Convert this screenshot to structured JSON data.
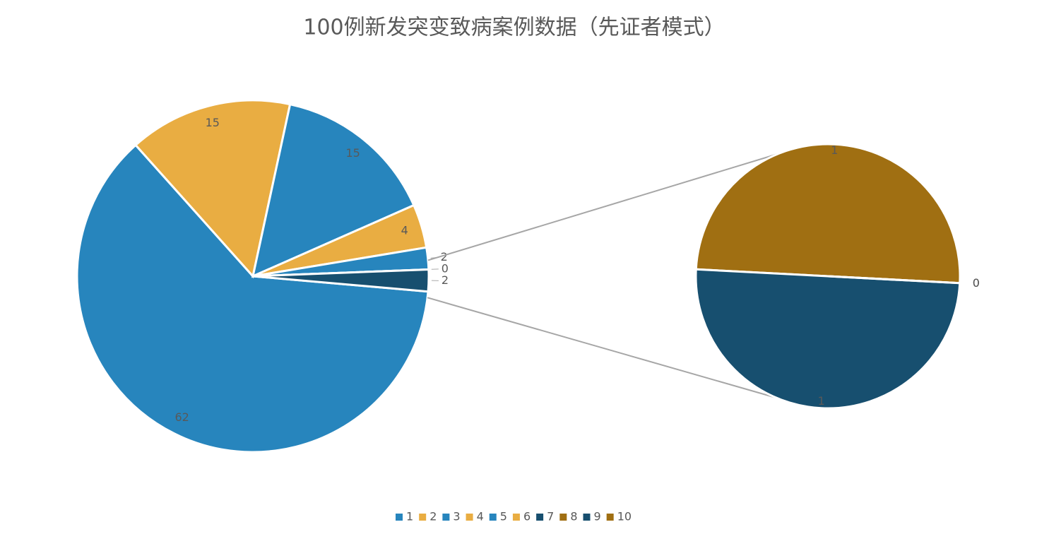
{
  "chart_data": {
    "type": "pie-of-pie",
    "title": "100例新发突变致病案例数据（先证者模式）",
    "categories": [
      "1",
      "2",
      "3",
      "4",
      "5",
      "6",
      "7",
      "8",
      "9",
      "10"
    ],
    "values": [
      62,
      15,
      15,
      4,
      2,
      0,
      0,
      1,
      1,
      0
    ],
    "colors": [
      "#2785bd",
      "#e9ad42",
      "#2785bd",
      "#e9ad42",
      "#2785bd",
      "#e9ad42",
      "#174f6f",
      "#a06f12",
      "#174f6f",
      "#a06f12"
    ],
    "split": 6,
    "other_value": 2,
    "other_color": "#174f6f",
    "legend": "bottom"
  }
}
